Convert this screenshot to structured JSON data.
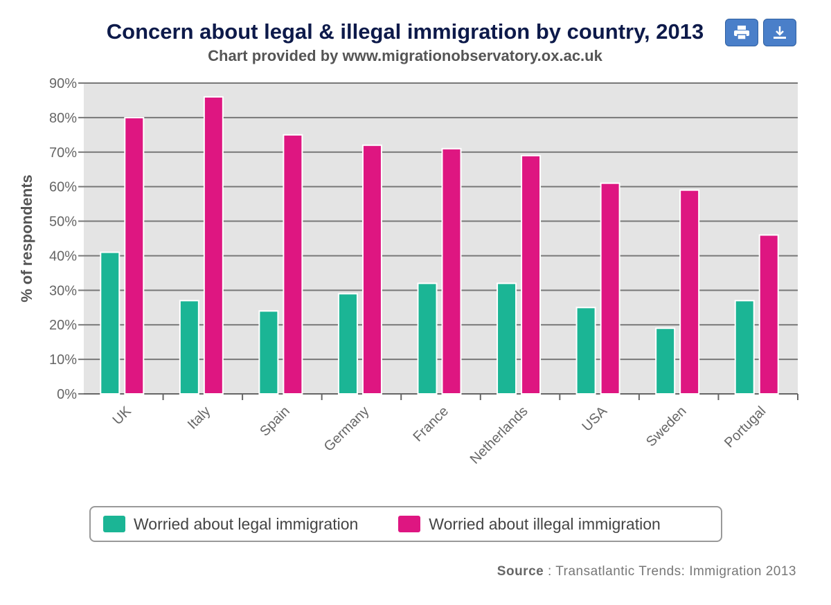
{
  "toolbar": {
    "print_icon": "print-icon",
    "download_icon": "download-icon"
  },
  "source": {
    "label": "Source",
    "text": " : Transatlantic Trends: Immigration 2013"
  },
  "chart_data": {
    "type": "bar",
    "title": "Concern about legal & illegal immigration by country, 2013",
    "subtitle": "Chart provided by www.migrationobservatory.ox.ac.uk",
    "xlabel": "",
    "ylabel": "% of respondents",
    "ylim": [
      0,
      90
    ],
    "yticks": [
      "0%",
      "10%",
      "20%",
      "30%",
      "40%",
      "50%",
      "60%",
      "70%",
      "80%",
      "90%"
    ],
    "grid": true,
    "legend_position": "bottom",
    "categories": [
      "UK",
      "Italy",
      "Spain",
      "Germany",
      "France",
      "Netherlands",
      "USA",
      "Sweden",
      "Portugal"
    ],
    "series": [
      {
        "name": "Worried about legal immigration",
        "color": "#1bb595",
        "values": [
          41,
          27,
          24,
          29,
          32,
          32,
          25,
          19,
          27
        ]
      },
      {
        "name": "Worried about illegal immigration",
        "color": "#de1681",
        "values": [
          80,
          86,
          75,
          72,
          71,
          69,
          61,
          59,
          46
        ]
      }
    ]
  }
}
